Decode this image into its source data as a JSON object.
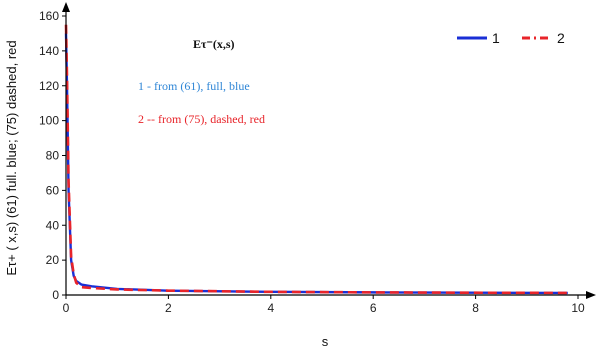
{
  "colors": {
    "series1": "#1a2fd6",
    "series2": "#e8242a",
    "note1": "#2f86d6",
    "note2": "#e8242a",
    "axis": "#000000"
  },
  "chart_data": {
    "type": "line",
    "title": "",
    "annotation_title": "Eτ⁻(x,s)",
    "notes": [
      "1  -  from (61), full, blue",
      "2  -- from (75),  dashed, red"
    ],
    "xlabel": "s",
    "ylabel": "Eτ+ ( x,s) (61) full. blue; (75) dashed, red",
    "xlim": [
      0,
      10
    ],
    "ylim": [
      0,
      160
    ],
    "xticks": [
      0,
      2,
      4,
      6,
      8,
      10
    ],
    "yticks": [
      0,
      20,
      40,
      60,
      80,
      100,
      120,
      140,
      160
    ],
    "grid": false,
    "legend_position": "top-right",
    "series": [
      {
        "name": "1",
        "style": "solid",
        "x": [
          0.0,
          0.02,
          0.05,
          0.1,
          0.15,
          0.2,
          0.3,
          0.5,
          1.0,
          2.0,
          4.0,
          6.0,
          8.0,
          9.8
        ],
        "y": [
          150,
          120,
          60,
          20,
          11,
          8,
          6,
          5,
          3.5,
          2.5,
          1.8,
          1.5,
          1.3,
          1.2
        ]
      },
      {
        "name": "2",
        "style": "dashed",
        "x": [
          0.0,
          0.02,
          0.05,
          0.1,
          0.15,
          0.2,
          0.3,
          0.5,
          1.0,
          2.0,
          4.0,
          6.0,
          8.0,
          9.8
        ],
        "y": [
          155,
          125,
          65,
          22,
          12,
          7,
          4.5,
          4,
          3.2,
          2.5,
          1.8,
          1.5,
          1.3,
          1.2
        ]
      }
    ]
  }
}
